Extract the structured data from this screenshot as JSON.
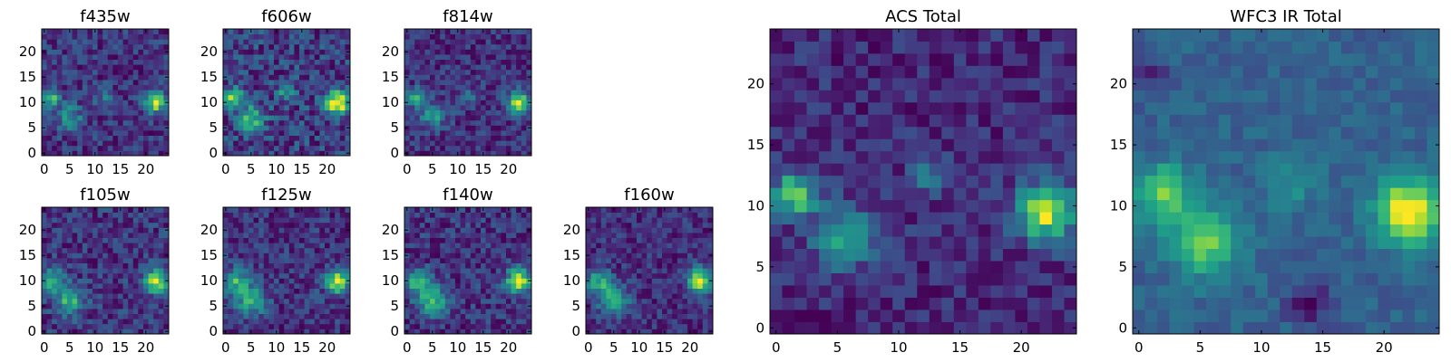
{
  "chart_data": [
    {
      "type": "heatmap",
      "title": "f435w",
      "colormap": "viridis",
      "grid_size": 25,
      "xlim": [
        0,
        25
      ],
      "ylim": [
        0,
        25
      ],
      "xticks": [
        "0",
        "5",
        "10",
        "15",
        "20"
      ],
      "yticks": [
        "0",
        "5",
        "10",
        "15",
        "20"
      ],
      "blobs": [
        {
          "x": 22,
          "y": 10,
          "amp": 1.0,
          "sigma": 1.4
        },
        {
          "x": 1.5,
          "y": 11,
          "amp": 0.75,
          "sigma": 1.3
        },
        {
          "x": 5,
          "y": 7,
          "amp": 0.55,
          "sigma": 1.7
        },
        {
          "x": 12,
          "y": 11,
          "amp": 0.3,
          "sigma": 1.3
        }
      ],
      "noise": 0.22,
      "seed": 11
    },
    {
      "type": "heatmap",
      "title": "f606w",
      "colormap": "viridis",
      "grid_size": 25,
      "xlim": [
        0,
        25
      ],
      "ylim": [
        0,
        25
      ],
      "xticks": [
        "0",
        "5",
        "10",
        "15",
        "20"
      ],
      "yticks": [
        "0",
        "5",
        "10",
        "15",
        "20"
      ],
      "blobs": [
        {
          "x": 22,
          "y": 10,
          "amp": 1.0,
          "sigma": 1.5
        },
        {
          "x": 1.5,
          "y": 11,
          "amp": 0.7,
          "sigma": 1.3
        },
        {
          "x": 5,
          "y": 7,
          "amp": 0.55,
          "sigma": 1.8
        },
        {
          "x": 12,
          "y": 12,
          "amp": 0.35,
          "sigma": 1.3
        }
      ],
      "noise": 0.2,
      "seed": 23
    },
    {
      "type": "heatmap",
      "title": "f814w",
      "colormap": "viridis",
      "grid_size": 25,
      "xlim": [
        0,
        25
      ],
      "ylim": [
        0,
        25
      ],
      "xticks": [
        "0",
        "5",
        "10",
        "15",
        "20"
      ],
      "yticks": [
        "0",
        "5",
        "10",
        "15",
        "20"
      ],
      "blobs": [
        {
          "x": 22,
          "y": 10,
          "amp": 1.0,
          "sigma": 1.6
        },
        {
          "x": 1.5,
          "y": 11,
          "amp": 0.6,
          "sigma": 1.3
        },
        {
          "x": 5,
          "y": 7.5,
          "amp": 0.55,
          "sigma": 1.8
        },
        {
          "x": 12,
          "y": 11,
          "amp": 0.3,
          "sigma": 1.3
        }
      ],
      "noise": 0.2,
      "seed": 37
    },
    {
      "type": "heatmap",
      "title": "f105w",
      "colormap": "viridis",
      "grid_size": 25,
      "xlim": [
        0,
        25
      ],
      "ylim": [
        0,
        25
      ],
      "xticks": [
        "0",
        "5",
        "10",
        "15",
        "20"
      ],
      "yticks": [
        "0",
        "5",
        "10",
        "15",
        "20"
      ],
      "blobs": [
        {
          "x": 22,
          "y": 10,
          "amp": 1.0,
          "sigma": 1.6
        },
        {
          "x": 1.5,
          "y": 10,
          "amp": 0.65,
          "sigma": 1.6
        },
        {
          "x": 5,
          "y": 6,
          "amp": 0.6,
          "sigma": 2.0
        }
      ],
      "noise": 0.2,
      "seed": 41
    },
    {
      "type": "heatmap",
      "title": "f125w",
      "colormap": "viridis",
      "grid_size": 25,
      "xlim": [
        0,
        25
      ],
      "ylim": [
        0,
        25
      ],
      "xticks": [
        "0",
        "5",
        "10",
        "15",
        "20"
      ],
      "yticks": [
        "0",
        "5",
        "10",
        "15",
        "20"
      ],
      "blobs": [
        {
          "x": 22,
          "y": 10,
          "amp": 1.0,
          "sigma": 1.7
        },
        {
          "x": 2,
          "y": 10,
          "amp": 0.6,
          "sigma": 1.8
        },
        {
          "x": 5,
          "y": 6,
          "amp": 0.6,
          "sigma": 2.1
        }
      ],
      "noise": 0.2,
      "seed": 53
    },
    {
      "type": "heatmap",
      "title": "f140w",
      "colormap": "viridis",
      "grid_size": 25,
      "xlim": [
        0,
        25
      ],
      "ylim": [
        0,
        25
      ],
      "xticks": [
        "0",
        "5",
        "10",
        "15",
        "20"
      ],
      "yticks": [
        "0",
        "5",
        "10",
        "15",
        "20"
      ],
      "blobs": [
        {
          "x": 22,
          "y": 10,
          "amp": 1.0,
          "sigma": 1.7
        },
        {
          "x": 2,
          "y": 10,
          "amp": 0.6,
          "sigma": 1.8
        },
        {
          "x": 5,
          "y": 6,
          "amp": 0.6,
          "sigma": 2.1
        }
      ],
      "noise": 0.2,
      "seed": 67
    },
    {
      "type": "heatmap",
      "title": "f160w",
      "colormap": "viridis",
      "grid_size": 25,
      "xlim": [
        0,
        25
      ],
      "ylim": [
        0,
        25
      ],
      "xticks": [
        "0",
        "5",
        "10",
        "15",
        "20"
      ],
      "yticks": [
        "0",
        "5",
        "10",
        "15",
        "20"
      ],
      "blobs": [
        {
          "x": 22,
          "y": 10,
          "amp": 1.0,
          "sigma": 1.7
        },
        {
          "x": 2,
          "y": 10,
          "amp": 0.6,
          "sigma": 1.8
        },
        {
          "x": 5,
          "y": 6,
          "amp": 0.65,
          "sigma": 2.1
        }
      ],
      "noise": 0.18,
      "seed": 79
    },
    {
      "type": "heatmap",
      "title": "ACS Total",
      "colormap": "viridis",
      "grid_size": 25,
      "xlim": [
        0,
        25
      ],
      "ylim": [
        0,
        25
      ],
      "xticks": [
        "0",
        "5",
        "10",
        "15",
        "20"
      ],
      "yticks": [
        "0",
        "5",
        "10",
        "15",
        "20"
      ],
      "blobs": [
        {
          "x": 22,
          "y": 9.5,
          "amp": 1.0,
          "sigma": 1.6
        },
        {
          "x": 1.5,
          "y": 11,
          "amp": 0.85,
          "sigma": 1.2
        },
        {
          "x": 5.5,
          "y": 7.5,
          "amp": 0.6,
          "sigma": 1.7
        },
        {
          "x": 12.5,
          "y": 12.5,
          "amp": 0.35,
          "sigma": 1.1
        }
      ],
      "noise": 0.15,
      "seed": 97
    },
    {
      "type": "heatmap",
      "title": "WFC3 IR Total",
      "colormap": "viridis",
      "grid_size": 25,
      "xlim": [
        0,
        25
      ],
      "ylim": [
        0,
        25
      ],
      "xticks": [
        "0",
        "5",
        "10",
        "15",
        "20"
      ],
      "yticks": [
        "0",
        "5",
        "10",
        "15",
        "20"
      ],
      "blobs": [
        {
          "x": 22,
          "y": 9.5,
          "amp": 1.0,
          "sigma": 1.8
        },
        {
          "x": 2,
          "y": 11,
          "amp": 0.6,
          "sigma": 1.7
        },
        {
          "x": 5.5,
          "y": 7,
          "amp": 0.6,
          "sigma": 2.0
        },
        {
          "x": 12.5,
          "y": 12,
          "amp": 0.25,
          "sigma": 1.5
        }
      ],
      "noise": 0.1,
      "seed": 113,
      "dark_spots": [
        {
          "x": 14,
          "y": 2,
          "amp": 0.35,
          "sigma": 1.3
        },
        {
          "x": 1,
          "y": 21,
          "amp": 0.25,
          "sigma": 1.0
        }
      ]
    }
  ]
}
